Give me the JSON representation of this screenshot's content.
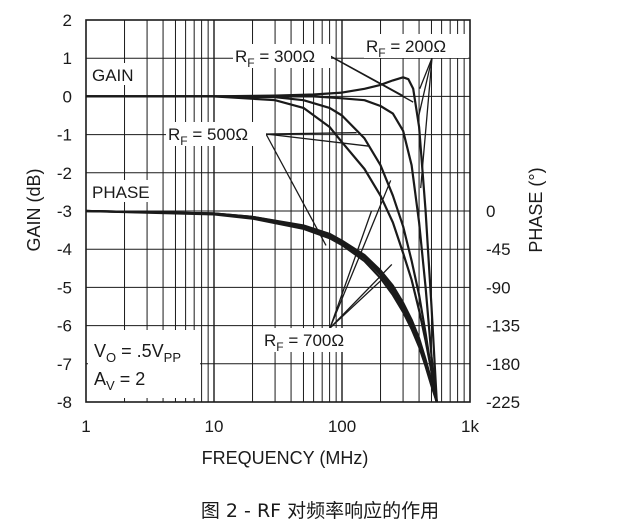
{
  "chart_data": {
    "type": "line",
    "x_scale": "log",
    "xlim": [
      1,
      1000
    ],
    "x_ticks": [
      "1",
      "10",
      "100",
      "1k"
    ],
    "xlabel": "FREQUENCY (MHz)",
    "ylabel_left": "GAIN (dB)",
    "ylim_left": [
      -8,
      2
    ],
    "y_ticks_left": [
      "2",
      "1",
      "0",
      "-1",
      "-2",
      "-3",
      "-4",
      "-5",
      "-6",
      "-7",
      "-8"
    ],
    "ylabel_right": "PHASE (°)",
    "ylim_right": [
      -225,
      0
    ],
    "y_ticks_right": [
      "0",
      "-45",
      "-90",
      "-135",
      "-180",
      "-225"
    ],
    "grid": true,
    "labels": {
      "gain": "GAIN",
      "phase": "PHASE",
      "vo": "V",
      "vo_sub": "O",
      "vo_val": " = .5V",
      "vo_unit_sub": "PP",
      "av": "A",
      "av_sub": "V",
      "av_val": " = 2"
    },
    "annotations": {
      "rf300": {
        "pre": "R",
        "sub": "F",
        "val": " = 300Ω"
      },
      "rf200": {
        "pre": "R",
        "sub": "F",
        "val": " = 200Ω"
      },
      "rf500": {
        "pre": "R",
        "sub": "F",
        "val": " = 500Ω"
      },
      "rf700": {
        "pre": "R",
        "sub": "F",
        "val": " = 700Ω"
      }
    },
    "gain_series": [
      {
        "rf": "200Ω",
        "x": [
          1,
          10,
          30,
          60,
          100,
          150,
          200,
          250,
          300,
          330,
          360,
          400,
          450,
          500,
          550
        ],
        "y": [
          0,
          0,
          0.02,
          0.05,
          0.1,
          0.2,
          0.3,
          0.42,
          0.5,
          0.45,
          0.2,
          -0.8,
          -3,
          -5.5,
          -8
        ]
      },
      {
        "rf": "300Ω",
        "x": [
          1,
          10,
          30,
          60,
          100,
          150,
          200,
          250,
          300,
          350,
          400,
          450,
          500,
          550
        ],
        "y": [
          0,
          0,
          0,
          0,
          -0.05,
          -0.1,
          -0.25,
          -0.45,
          -0.9,
          -1.8,
          -3.3,
          -5,
          -6.8,
          -8
        ]
      },
      {
        "rf": "500Ω",
        "x": [
          1,
          10,
          30,
          50,
          80,
          100,
          150,
          200,
          250,
          300,
          350,
          400,
          450,
          500,
          550
        ],
        "y": [
          0,
          0,
          -0.02,
          -0.1,
          -0.3,
          -0.5,
          -1.1,
          -1.8,
          -2.6,
          -3.4,
          -4.3,
          -5.2,
          -6.2,
          -7.2,
          -8
        ]
      },
      {
        "rf": "700Ω",
        "x": [
          1,
          10,
          30,
          50,
          80,
          100,
          150,
          200,
          250,
          300,
          350,
          400,
          450,
          500,
          550
        ],
        "y": [
          0,
          0,
          -0.1,
          -0.3,
          -0.8,
          -1.2,
          -1.9,
          -2.6,
          -3.3,
          -4.1,
          -4.8,
          -5.6,
          -6.4,
          -7.2,
          -8
        ]
      }
    ],
    "phase_series": [
      {
        "rf": "200Ω",
        "x": [
          1,
          10,
          20,
          50,
          80,
          100,
          150,
          200,
          250,
          300,
          350,
          400,
          450,
          500,
          550
        ],
        "y": [
          0,
          -3,
          -7,
          -17,
          -27,
          -35,
          -52,
          -70,
          -88,
          -108,
          -128,
          -150,
          -175,
          -200,
          -225
        ]
      },
      {
        "rf": "300Ω",
        "x": [
          1,
          10,
          20,
          50,
          80,
          100,
          150,
          200,
          250,
          300,
          350,
          400,
          450,
          500,
          550
        ],
        "y": [
          0,
          -3,
          -7,
          -18,
          -28,
          -36,
          -54,
          -72,
          -91,
          -111,
          -131,
          -153,
          -177,
          -202,
          -225
        ]
      },
      {
        "rf": "500Ω",
        "x": [
          1,
          10,
          20,
          50,
          80,
          100,
          150,
          200,
          250,
          300,
          350,
          400,
          450,
          500,
          550
        ],
        "y": [
          0,
          -3,
          -8,
          -19,
          -30,
          -38,
          -56,
          -75,
          -95,
          -115,
          -135,
          -156,
          -180,
          -204,
          -225
        ]
      },
      {
        "rf": "700Ω",
        "x": [
          1,
          10,
          20,
          50,
          80,
          100,
          150,
          200,
          250,
          300,
          350,
          400,
          450,
          500,
          550
        ],
        "y": [
          0,
          -4,
          -9,
          -21,
          -32,
          -40,
          -59,
          -79,
          -99,
          -119,
          -139,
          -160,
          -183,
          -206,
          -225
        ]
      }
    ],
    "caption": "图 2 - RF 对频率响应的作用"
  }
}
